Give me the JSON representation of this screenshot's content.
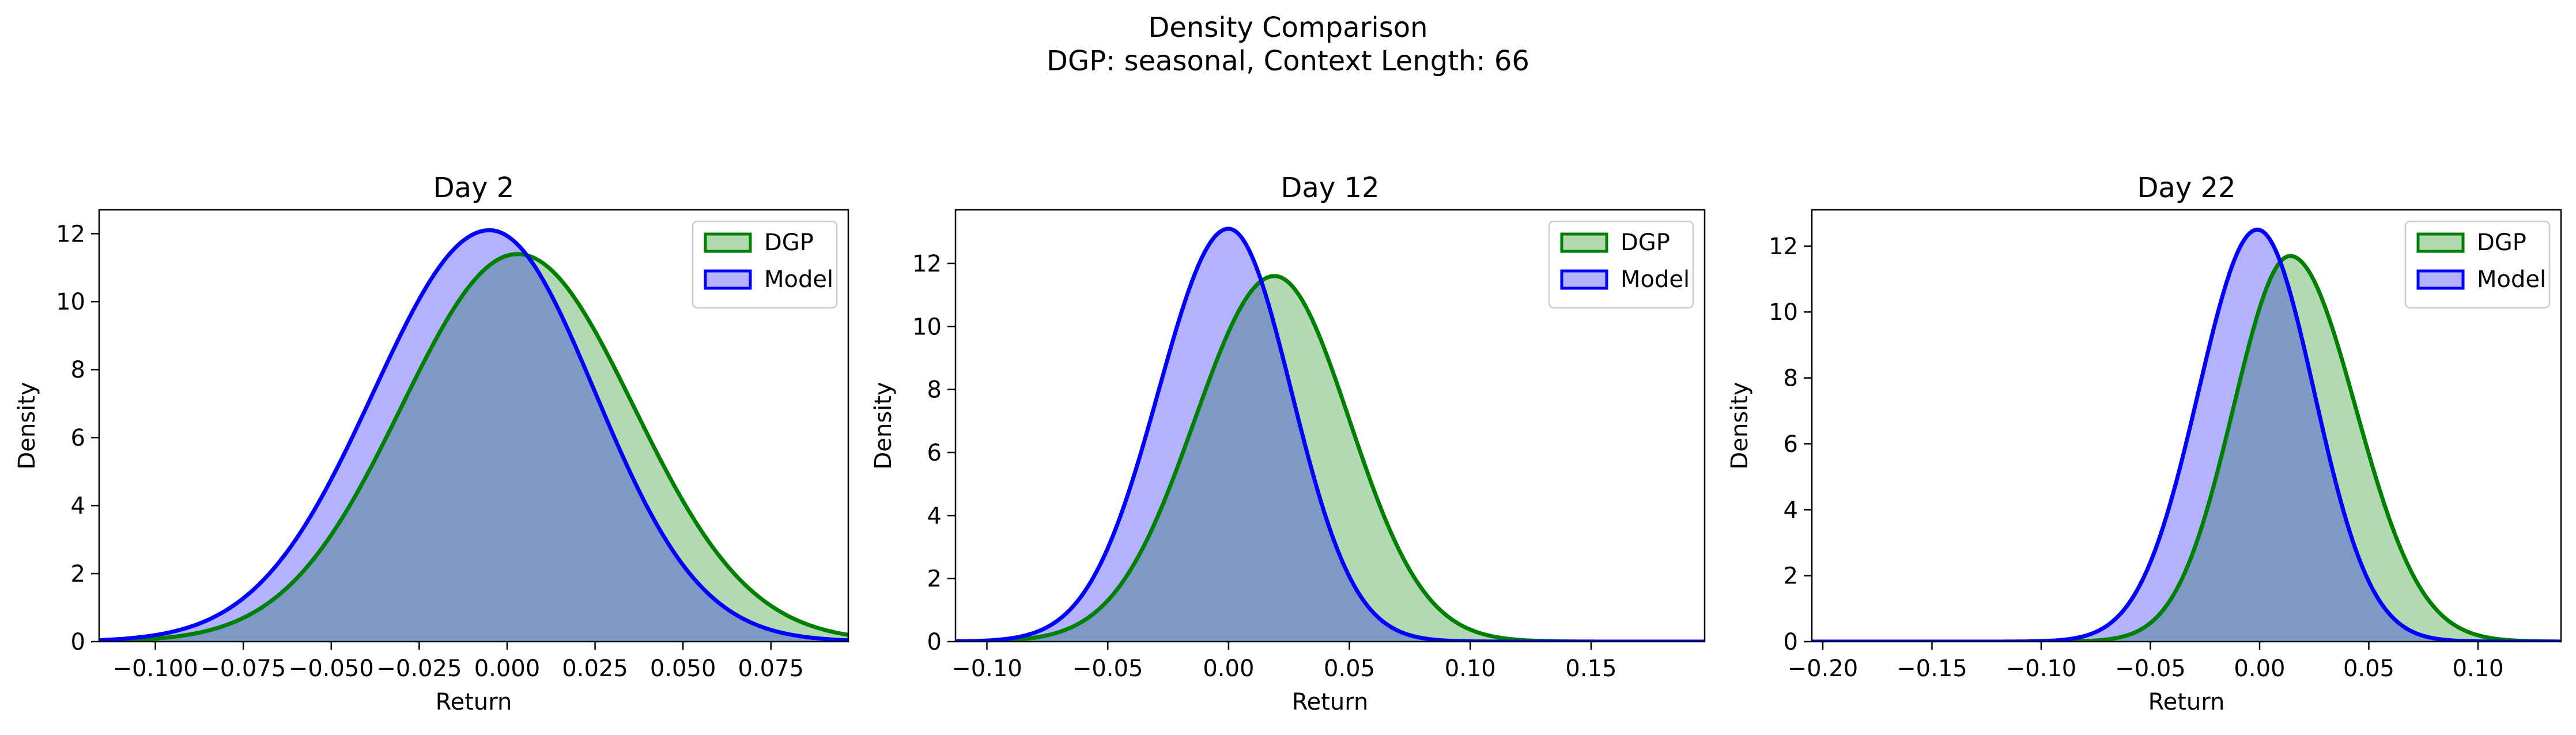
{
  "figure": {
    "title_line1": "Density Comparison",
    "title_line2": "DGP: seasonal, Context Length: 66"
  },
  "colors": {
    "dgp_line": "#008000",
    "dgp_fill": "#b2d9b2",
    "model_line": "#0000ff",
    "model_fill": "#b2b2ff",
    "overlap_fill": "#7f99c7"
  },
  "chart_data": [
    {
      "type": "area",
      "title": "Day 2",
      "xlabel": "Return",
      "ylabel": "Density",
      "xlim": [
        -0.116,
        0.097
      ],
      "ylim": [
        0,
        12.7
      ],
      "xticks": [
        -0.1,
        -0.075,
        -0.05,
        -0.025,
        0.0,
        0.025,
        0.05,
        0.075
      ],
      "xtick_labels": [
        "−0.100",
        "−0.075",
        "−0.050",
        "−0.025",
        "0.000",
        "0.025",
        "0.050",
        "0.075"
      ],
      "yticks": [
        0,
        2,
        4,
        6,
        8,
        10,
        12
      ],
      "ytick_labels": [
        "0",
        "2",
        "4",
        "6",
        "8",
        "10",
        "12"
      ],
      "legend": {
        "position": "top-right",
        "entries": [
          "DGP",
          "Model"
        ]
      },
      "series": [
        {
          "name": "DGP",
          "peak_x": 0.003,
          "peak_y": 11.4,
          "sd_left": 0.033,
          "sd_right": 0.033
        },
        {
          "name": "Model",
          "peak_x": -0.005,
          "peak_y": 12.1,
          "sd_left": 0.033,
          "sd_right": 0.03
        }
      ]
    },
    {
      "type": "area",
      "title": "Day 12",
      "xlabel": "Return",
      "ylabel": "Density",
      "xlim": [
        -0.113,
        0.197
      ],
      "ylim": [
        0,
        13.7
      ],
      "xticks": [
        -0.1,
        -0.05,
        0.0,
        0.05,
        0.1,
        0.15
      ],
      "xtick_labels": [
        "−0.10",
        "−0.05",
        "0.00",
        "0.05",
        "0.10",
        "0.15"
      ],
      "yticks": [
        0,
        2,
        4,
        6,
        8,
        10,
        12
      ],
      "ytick_labels": [
        "0",
        "2",
        "4",
        "6",
        "8",
        "10",
        "12"
      ],
      "legend": {
        "position": "top-right",
        "entries": [
          "DGP",
          "Model"
        ]
      },
      "series": [
        {
          "name": "DGP",
          "peak_x": 0.019,
          "peak_y": 11.6,
          "sd_left": 0.033,
          "sd_right": 0.031
        },
        {
          "name": "Model",
          "peak_x": 0.0,
          "peak_y": 13.1,
          "sd_left": 0.029,
          "sd_right": 0.026
        }
      ]
    },
    {
      "type": "area",
      "title": "Day 22",
      "xlabel": "Return",
      "ylabel": "Density",
      "xlim": [
        -0.205,
        0.138
      ],
      "ylim": [
        0,
        13.1
      ],
      "xticks": [
        -0.2,
        -0.15,
        -0.1,
        -0.05,
        0.0,
        0.05,
        0.1
      ],
      "xtick_labels": [
        "−0.20",
        "−0.15",
        "−0.10",
        "−0.05",
        "0.00",
        "0.05",
        "0.10"
      ],
      "yticks": [
        0,
        2,
        4,
        6,
        8,
        10,
        12
      ],
      "ytick_labels": [
        "0",
        "2",
        "4",
        "6",
        "8",
        "10",
        "12"
      ],
      "legend": {
        "position": "top-right",
        "entries": [
          "DGP",
          "Model"
        ]
      },
      "series": [
        {
          "name": "DGP",
          "peak_x": 0.014,
          "peak_y": 11.7,
          "sd_left": 0.026,
          "sd_right": 0.03
        },
        {
          "name": "Model",
          "peak_x": -0.001,
          "peak_y": 12.5,
          "sd_left": 0.027,
          "sd_right": 0.026
        }
      ]
    }
  ]
}
